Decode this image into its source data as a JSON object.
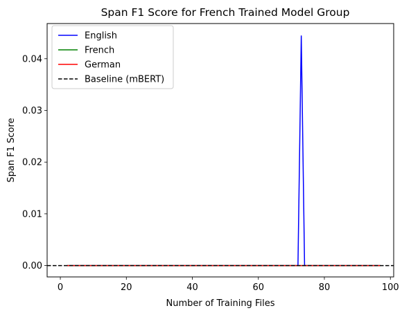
{
  "chart_data": {
    "type": "line",
    "title": "Span F1 Score for French Trained Model Group",
    "xlabel": "Number of Training Files",
    "ylabel": "Span F1 Score",
    "xlim": [
      -4,
      101
    ],
    "ylim": [
      -0.0022,
      0.0468
    ],
    "xticks": [
      0,
      20,
      40,
      60,
      80,
      100
    ],
    "yticks": [
      0.0,
      0.01,
      0.02,
      0.03,
      0.04
    ],
    "ytick_labels": [
      "0.00",
      "0.01",
      "0.02",
      "0.03",
      "0.04"
    ],
    "grid": false,
    "legend_position": "top-left",
    "series": [
      {
        "name": "English",
        "color": "#0000ff",
        "style": "solid",
        "x": [
          2,
          71,
          72,
          73,
          74,
          97
        ],
        "y": [
          0,
          0,
          0,
          0.0444,
          0,
          0
        ]
      },
      {
        "name": "French",
        "color": "#008000",
        "style": "solid",
        "x": [
          2,
          97
        ],
        "y": [
          0,
          0
        ]
      },
      {
        "name": "German",
        "color": "#ff0000",
        "style": "solid",
        "x": [
          2,
          97
        ],
        "y": [
          0,
          0
        ]
      },
      {
        "name": "Baseline (mBERT)",
        "color": "#000000",
        "style": "dashed",
        "hline": 0
      }
    ]
  }
}
